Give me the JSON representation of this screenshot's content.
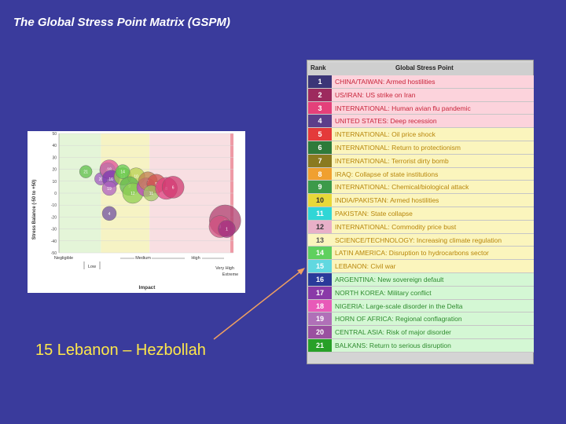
{
  "title": "The Global Stress Point Matrix (GSPM)",
  "caption": "15 Lebanon – Hezbollah",
  "chart_data": {
    "type": "scatter",
    "xlabel": "Impact",
    "ylabel": "Stress Balance (-50 to +50)",
    "ylim": [
      -50,
      50
    ],
    "yticks": [
      50,
      40,
      30,
      20,
      10,
      0,
      -10,
      -20,
      -30,
      -40,
      -50
    ],
    "x_categories": [
      "Negligible",
      "Low",
      "Medium",
      "High",
      "Very High",
      "Extreme"
    ],
    "bubbles": [
      {
        "label": "21",
        "x": 0.8,
        "y": 18,
        "r": 8,
        "color": "#5fbf4a"
      },
      {
        "label": "20",
        "x": 1.25,
        "y": 12,
        "r": 8,
        "color": "#a05ac0"
      },
      {
        "label": "15",
        "x": 1.45,
        "y": 19,
        "r": 10,
        "color": "#4fcfcf"
      },
      {
        "label": "18",
        "x": 1.5,
        "y": 20,
        "r": 12,
        "color": "#e0509a"
      },
      {
        "label": "16",
        "x": 1.55,
        "y": 12,
        "r": 11,
        "color": "#7a3ab0"
      },
      {
        "label": "19",
        "x": 1.5,
        "y": 4,
        "r": 9,
        "color": "#b060c0"
      },
      {
        "label": "13",
        "x": 1.9,
        "y": 14,
        "r": 11,
        "color": "#9bd04a"
      },
      {
        "label": "10",
        "x": 2.3,
        "y": 14,
        "r": 11,
        "color": "#b8d050"
      },
      {
        "label": "9",
        "x": 2.1,
        "y": 6,
        "r": 12,
        "color": "#62b850"
      },
      {
        "label": "12",
        "x": 2.2,
        "y": 0,
        "r": 13,
        "color": "#8fcf50"
      },
      {
        "label": "14",
        "x": 1.9,
        "y": 18,
        "r": 9,
        "color": "#60c850"
      },
      {
        "label": "17",
        "x": 2.6,
        "y": 5,
        "r": 12,
        "color": "#c040c0"
      },
      {
        "label": "7",
        "x": 2.65,
        "y": 10,
        "r": 12,
        "color": "#c08050"
      },
      {
        "label": "5",
        "x": 2.9,
        "y": 8,
        "r": 12,
        "color": "#d05050"
      },
      {
        "label": "11",
        "x": 2.75,
        "y": 0,
        "r": 10,
        "color": "#a0c860"
      },
      {
        "label": "8",
        "x": 3.2,
        "y": 4,
        "r": 14,
        "color": "#e04080"
      },
      {
        "label": "6",
        "x": 3.4,
        "y": 5,
        "r": 14,
        "color": "#d03a70"
      },
      {
        "label": "4",
        "x": 1.5,
        "y": -17,
        "r": 9,
        "color": "#7050a0"
      },
      {
        "label": "2",
        "x": 4.95,
        "y": -23,
        "r": 20,
        "color": "#b04070"
      },
      {
        "label": "3",
        "x": 4.8,
        "y": -28,
        "r": 14,
        "color": "#d05080"
      },
      {
        "label": "1",
        "x": 5.0,
        "y": -30,
        "r": 11,
        "color": "#a03080"
      }
    ]
  },
  "table": {
    "headers": {
      "rank": "Rank",
      "point": "Global Stress Point"
    },
    "rows": [
      {
        "rank": "1",
        "name": "CHINA/TAIWAN: Armed hostilities",
        "rank_bg": "#3b3577",
        "rank_fg": "#ffffff",
        "bg": "#fcd3dc",
        "fg": "#c8243a"
      },
      {
        "rank": "2",
        "name": "US/IRAN: US strike on Iran",
        "rank_bg": "#9d2a5e",
        "rank_fg": "#ffffff",
        "bg": "#fcd3dc",
        "fg": "#c8243a"
      },
      {
        "rank": "3",
        "name": "INTERNATIONAL: Human avian flu pandemic",
        "rank_bg": "#e4407a",
        "rank_fg": "#ffffff",
        "bg": "#fcd3dc",
        "fg": "#c8243a"
      },
      {
        "rank": "4",
        "name": "UNITED STATES: Deep recession",
        "rank_bg": "#5c3e8a",
        "rank_fg": "#ffffff",
        "bg": "#fcd3dc",
        "fg": "#c8243a"
      },
      {
        "rank": "5",
        "name": "INTERNATIONAL: Oil price shock",
        "rank_bg": "#e43a3a",
        "rank_fg": "#ffffff",
        "bg": "#fbf5bd",
        "fg": "#b8860b"
      },
      {
        "rank": "6",
        "name": "INTERNATIONAL: Return to protectionism",
        "rank_bg": "#2e7a3a",
        "rank_fg": "#ffffff",
        "bg": "#fbf5bd",
        "fg": "#b8860b"
      },
      {
        "rank": "7",
        "name": "INTERNATIONAL: Terrorist dirty bomb",
        "rank_bg": "#8a7a20",
        "rank_fg": "#ffffff",
        "bg": "#fbf5bd",
        "fg": "#b8860b"
      },
      {
        "rank": "8",
        "name": "IRAQ: Collapse of state institutions",
        "rank_bg": "#f0a030",
        "rank_fg": "#ffffff",
        "bg": "#fbf5bd",
        "fg": "#b8860b"
      },
      {
        "rank": "9",
        "name": "INTERNATIONAL: Chemical/biological attack",
        "rank_bg": "#3c9a4a",
        "rank_fg": "#ffffff",
        "bg": "#fbf5bd",
        "fg": "#b8860b"
      },
      {
        "rank": "10",
        "name": "INDIA/PAKISTAN: Armed hostilities",
        "rank_bg": "#e8d838",
        "rank_fg": "#333333",
        "bg": "#fbf5bd",
        "fg": "#b8860b"
      },
      {
        "rank": "11",
        "name": "PAKISTAN: State collapse",
        "rank_bg": "#30d6d6",
        "rank_fg": "#ffffff",
        "bg": "#fbf5bd",
        "fg": "#b8860b"
      },
      {
        "rank": "12",
        "name": "INTERNATIONAL: Commodity price bust",
        "rank_bg": "#e8b0c8",
        "rank_fg": "#333333",
        "bg": "#fbf5bd",
        "fg": "#b8860b"
      },
      {
        "rank": "13",
        "name": "SCIENCE/TECHNOLOGY: Increasing climate regulation",
        "rank_bg": "#fbf5bd",
        "rank_fg": "#555555",
        "bg": "#fbf5bd",
        "fg": "#b8860b"
      },
      {
        "rank": "14",
        "name": "LATIN AMERICA: Disruption to hydrocarbons sector",
        "rank_bg": "#5fd05f",
        "rank_fg": "#ffffff",
        "bg": "#fbf5bd",
        "fg": "#b8860b"
      },
      {
        "rank": "15",
        "name": "LEBANON: Civil war",
        "rank_bg": "#60d8e0",
        "rank_fg": "#ffffff",
        "bg": "#fbf5bd",
        "fg": "#b8860b"
      },
      {
        "rank": "16",
        "name": "ARGENTINA: New sovereign default",
        "rank_bg": "#2a3a9a",
        "rank_fg": "#ffffff",
        "bg": "#d4f7d4",
        "fg": "#2e8b2e"
      },
      {
        "rank": "17",
        "name": "NORTH KOREA: Military conflict",
        "rank_bg": "#8a3aa8",
        "rank_fg": "#ffffff",
        "bg": "#d4f7d4",
        "fg": "#2e8b2e"
      },
      {
        "rank": "18",
        "name": "NIGERIA: Large-scale disorder in the Delta",
        "rank_bg": "#e85ab8",
        "rank_fg": "#ffffff",
        "bg": "#d4f7d4",
        "fg": "#2e8b2e"
      },
      {
        "rank": "19",
        "name": "HORN OF AFRICA: Regional conflagration",
        "rank_bg": "#b070b8",
        "rank_fg": "#ffffff",
        "bg": "#d4f7d4",
        "fg": "#2e8b2e"
      },
      {
        "rank": "20",
        "name": "CENTRAL ASIA: Risk of major disorder",
        "rank_bg": "#9a50a0",
        "rank_fg": "#ffffff",
        "bg": "#d4f7d4",
        "fg": "#2e8b2e"
      },
      {
        "rank": "21",
        "name": "BALKANS: Return to serious disruption",
        "rank_bg": "#28a028",
        "rank_fg": "#ffffff",
        "bg": "#d4f7d4",
        "fg": "#2e8b2e"
      }
    ]
  },
  "colors": {
    "background": "#3a3b9c",
    "caption": "#ffe84a",
    "arrow": "#f0a060"
  }
}
